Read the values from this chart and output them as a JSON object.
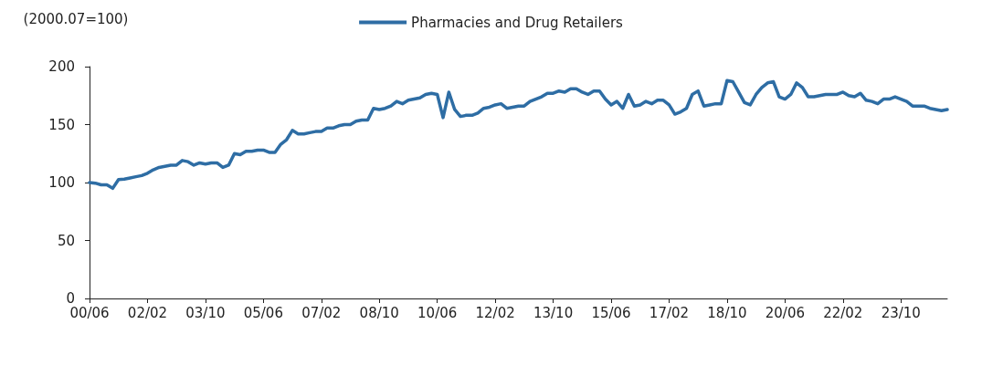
{
  "chart_data": {
    "type": "line",
    "ylabel": "(2000.07=100)",
    "categories": [
      "00/06",
      null,
      null,
      null,
      null,
      null,
      null,
      null,
      null,
      null,
      "02/02",
      null,
      null,
      null,
      null,
      null,
      null,
      null,
      null,
      null,
      "03/10",
      null,
      null,
      null,
      null,
      null,
      null,
      null,
      null,
      null,
      "05/06",
      null,
      null,
      null,
      null,
      null,
      null,
      null,
      null,
      null,
      "07/02",
      null,
      null,
      null,
      null,
      null,
      null,
      null,
      null,
      null,
      "08/10",
      null,
      null,
      null,
      null,
      null,
      null,
      null,
      null,
      null,
      "10/06",
      null,
      null,
      null,
      null,
      null,
      null,
      null,
      null,
      null,
      "12/02",
      null,
      null,
      null,
      null,
      null,
      null,
      null,
      null,
      null,
      "13/10",
      null,
      null,
      null,
      null,
      null,
      null,
      null,
      null,
      null,
      "15/06",
      null,
      null,
      null,
      null,
      null,
      null,
      null,
      null,
      null,
      "17/02",
      null,
      null,
      null,
      null,
      null,
      null,
      null,
      null,
      null,
      "18/10",
      null,
      null,
      null,
      null,
      null,
      null,
      null,
      null,
      null,
      "20/06",
      null,
      null,
      null,
      null,
      null,
      null,
      null,
      null,
      null,
      "22/02",
      null,
      null,
      null,
      null,
      null,
      null,
      null,
      null,
      null,
      "23/10",
      null,
      null,
      null,
      null,
      null,
      null,
      null,
      null
    ],
    "series": [
      {
        "name": "Pharmacies and Drug Retailers",
        "color": "#2e6da4",
        "values": [
          100,
          99.5,
          98,
          98,
          95,
          102.6,
          103,
          104,
          105,
          106,
          108,
          111,
          113,
          114,
          115,
          115,
          119,
          118,
          115,
          117,
          116,
          117,
          117,
          113,
          115,
          125,
          124,
          127,
          127,
          128,
          128,
          126,
          126,
          133,
          137,
          145,
          142,
          142,
          143,
          144,
          144,
          147,
          147,
          149,
          150,
          150,
          153,
          154,
          154,
          164,
          163,
          164,
          166,
          170,
          168,
          171,
          172,
          173,
          176,
          177,
          176,
          156,
          178,
          163,
          157,
          158,
          158,
          160,
          164,
          165,
          167,
          168,
          164,
          165,
          166,
          166,
          170,
          172,
          174,
          177,
          177,
          179,
          178,
          181,
          181,
          178,
          176,
          179,
          179,
          172,
          167,
          170,
          164,
          176,
          166,
          167,
          170,
          168,
          171,
          171,
          167,
          159,
          161,
          164,
          176,
          179,
          166,
          167,
          168,
          168,
          188,
          187,
          178,
          169,
          167,
          176,
          182,
          186,
          187,
          174,
          172,
          176,
          186,
          182,
          174,
          174,
          175,
          176,
          176,
          176,
          178,
          175,
          174,
          177,
          171,
          170,
          168,
          172,
          172,
          174,
          172,
          170,
          166,
          166,
          166,
          164,
          163,
          162,
          163
        ]
      }
    ],
    "ylim": [
      0,
      200
    ],
    "yticks": [
      0,
      50,
      100,
      150,
      200
    ],
    "grid": false,
    "legend": "top",
    "marker": "none",
    "line_style": "solid"
  }
}
